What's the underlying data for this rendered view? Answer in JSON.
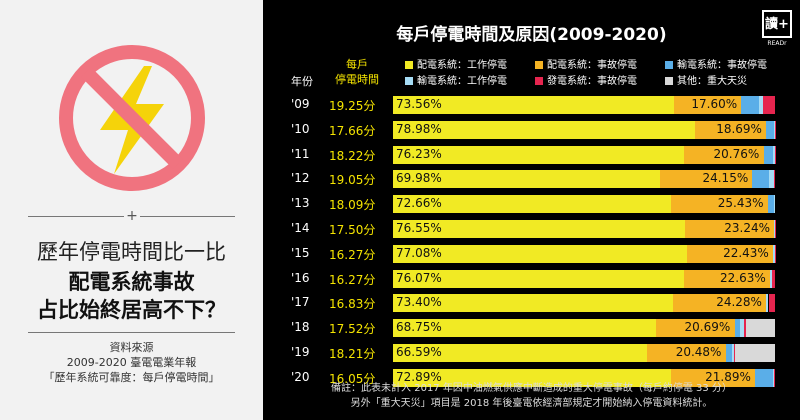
{
  "sidebar": {
    "headline_line1": "歷年停電時間比一比",
    "headline_line2": "配電系統事故",
    "headline_line3": "占比始終居高不下？",
    "source_line1": "資料來源",
    "source_line2": "2009-2020 臺電電業年報",
    "source_line3": "「歷年系統可靠度：每戶停電時間」",
    "icon": "no-power-icon"
  },
  "brand": {
    "logo_text": "讀+",
    "logo_sub": "READr"
  },
  "chart_data": {
    "type": "bar",
    "title": "每戶停電時間及原因(2009-2020)",
    "col_year_label": "年份",
    "col_minutes_label_1": "每戶",
    "col_minutes_label_2": "停電時間",
    "categories": [
      "'09",
      "'10",
      "'11",
      "'12",
      "'13",
      "'14",
      "'15",
      "'16",
      "'17",
      "'18",
      "'19",
      "'20"
    ],
    "minutes_labels": [
      "19.25分",
      "17.66分",
      "18.22分",
      "19.05分",
      "18.09分",
      "17.50分",
      "16.27分",
      "16.27分",
      "16.83分",
      "17.52分",
      "18.21分",
      "16.05分"
    ],
    "series": [
      {
        "name": "配電系統：工作停電",
        "color": "#f1ea24",
        "values": [
          73.56,
          78.98,
          76.23,
          69.98,
          72.66,
          76.55,
          77.08,
          76.07,
          73.4,
          68.75,
          66.59,
          72.89
        ],
        "labels": [
          "73.56%",
          "78.98%",
          "76.23%",
          "69.98%",
          "72.66%",
          "76.55%",
          "77.08%",
          "76.07%",
          "73.40%",
          "68.75%",
          "66.59%",
          "72.89%"
        ]
      },
      {
        "name": "配電系統：事故停電",
        "color": "#f5b324",
        "values": [
          17.6,
          18.69,
          20.76,
          24.15,
          25.43,
          23.24,
          22.43,
          22.63,
          24.28,
          20.69,
          20.48,
          21.89
        ],
        "labels": [
          "17.60%",
          "18.69%",
          "20.76%",
          "24.15%",
          "25.43%",
          "23.24%",
          "22.43%",
          "22.63%",
          "24.28%",
          "20.69%",
          "20.48%",
          "21.89%"
        ]
      },
      {
        "name": "輸電系統：事故停電",
        "color": "#5aaee8",
        "values": [
          4.5,
          2.0,
          2.6,
          4.3,
          1.6,
          0.0,
          0.0,
          0.0,
          0.0,
          1.5,
          1.6,
          4.6
        ]
      },
      {
        "name": "輸電系統：工作停電",
        "color": "#a6dcf5",
        "values": [
          1.1,
          0.2,
          0.3,
          1.3,
          0.3,
          0.1,
          0.4,
          0.6,
          0.6,
          0.9,
          0.6,
          0.4
        ]
      },
      {
        "name": "發電系統：事故停電",
        "color": "#e6254f",
        "values": [
          3.2,
          0.1,
          0.1,
          0.3,
          0.0,
          0.1,
          0.1,
          0.7,
          1.7,
          0.6,
          0.2,
          0.2
        ]
      },
      {
        "name": "其他：重大天災",
        "color": "#d9d9d9",
        "values": [
          0,
          0,
          0,
          0,
          0,
          0,
          0,
          0,
          0,
          7.6,
          10.5,
          0
        ]
      }
    ],
    "xlim": [
      0,
      100
    ],
    "note_line1": "備註：此表未計入 2017 年因中油燃氣供應中斷造成的重大停電事故（每戶約停電 33 分）",
    "note_line2": "另外「重大天災」項目是 2018 年後臺電依經濟部規定才開始納入停電資料統計。"
  }
}
